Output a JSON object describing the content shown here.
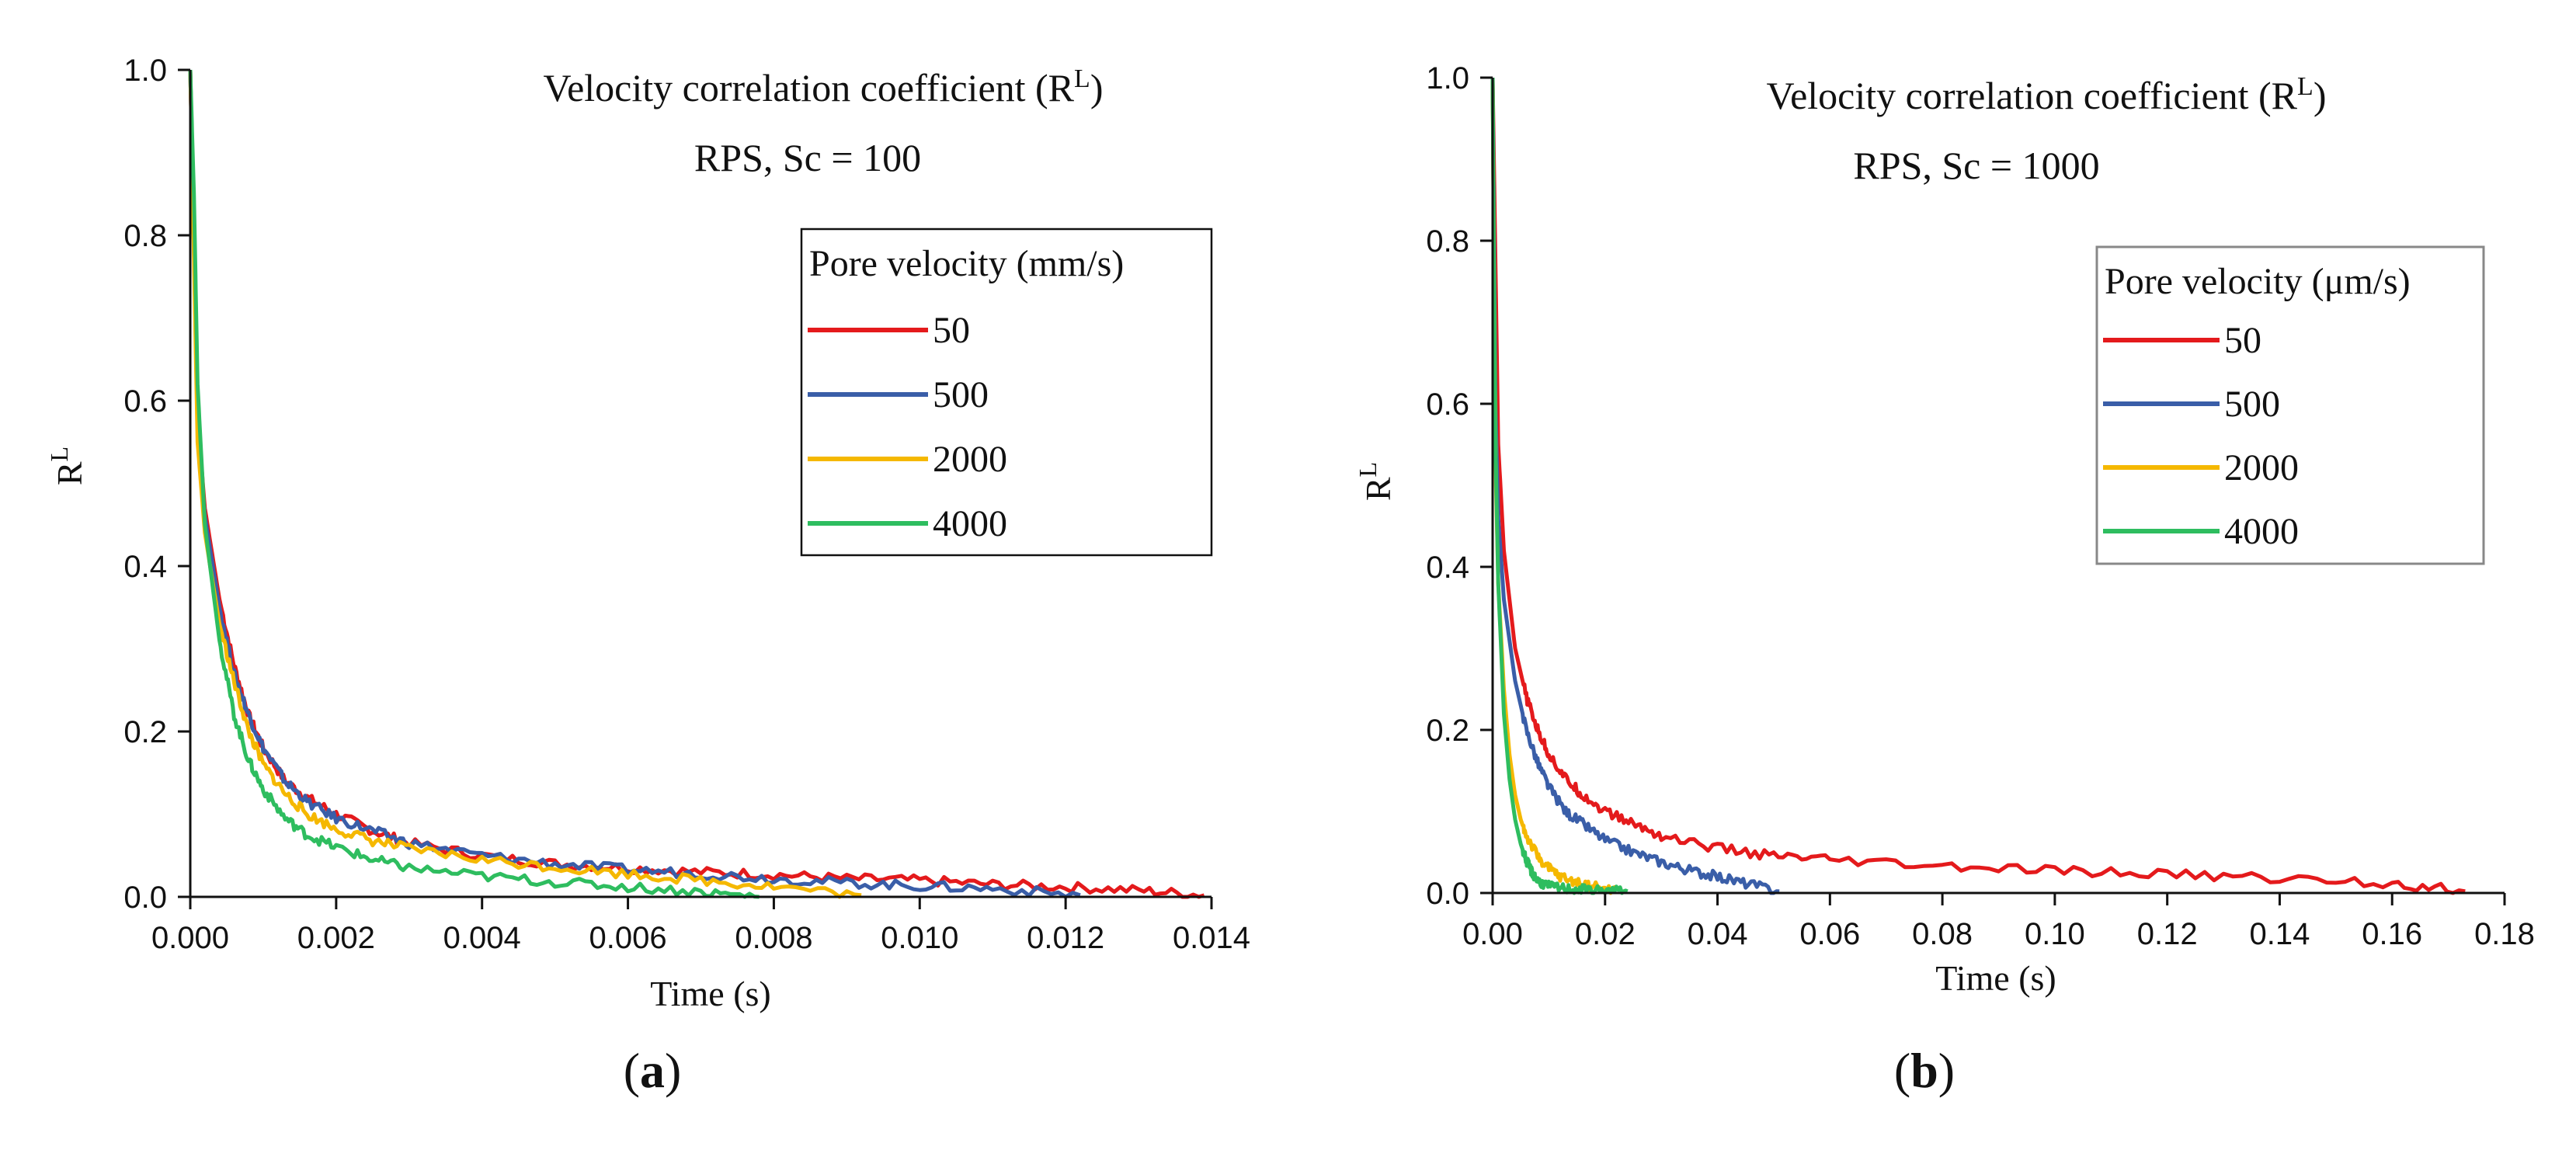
{
  "chart_data": [
    {
      "panel": "a",
      "type": "line",
      "title": "Velocity correlation coefficient (R^L)",
      "title_main": "Velocity correlation coefficient (R",
      "title_sup": "L",
      "title_close": ")",
      "subtitle": "RPS, Sc = 100",
      "xlabel": "Time (s)",
      "ylabel": "R^L",
      "ylabel_main": "R",
      "ylabel_sup": "L",
      "xlim": [
        0,
        0.014
      ],
      "ylim": [
        0,
        1.0
      ],
      "xticks": [
        "0.000",
        "0.002",
        "0.004",
        "0.006",
        "0.008",
        "0.010",
        "0.012",
        "0.014"
      ],
      "yticks": [
        "0.0",
        "0.2",
        "0.4",
        "0.6",
        "0.8",
        "1.0"
      ],
      "legend_title": "Pore velocity (mm/s)",
      "legend_position": "top-right",
      "panel_label": "a",
      "series": [
        {
          "name": "50",
          "color": "#e41a1c",
          "x_end": 0.0139,
          "x": [
            0,
            0.0001,
            0.0002,
            0.0004,
            0.0006,
            0.0008,
            0.001,
            0.0013,
            0.0016,
            0.002,
            0.0025,
            0.003,
            0.004,
            0.005,
            0.006,
            0.007,
            0.008,
            0.009,
            0.01,
            0.011,
            0.012,
            0.013,
            0.0139
          ],
          "y": [
            1.0,
            0.58,
            0.47,
            0.36,
            0.28,
            0.22,
            0.18,
            0.14,
            0.12,
            0.1,
            0.08,
            0.065,
            0.05,
            0.04,
            0.035,
            0.03,
            0.027,
            0.022,
            0.02,
            0.015,
            0.012,
            0.008,
            0.002
          ]
        },
        {
          "name": "500",
          "color": "#3a5ea8",
          "x_end": 0.0122,
          "x": [
            0,
            0.0001,
            0.0002,
            0.0004,
            0.0006,
            0.0008,
            0.001,
            0.0013,
            0.0016,
            0.002,
            0.0025,
            0.003,
            0.004,
            0.005,
            0.006,
            0.007,
            0.008,
            0.009,
            0.01,
            0.011,
            0.0122
          ],
          "y": [
            1.0,
            0.57,
            0.46,
            0.35,
            0.27,
            0.22,
            0.18,
            0.14,
            0.115,
            0.095,
            0.08,
            0.065,
            0.05,
            0.04,
            0.033,
            0.028,
            0.022,
            0.017,
            0.013,
            0.01,
            0.002
          ]
        },
        {
          "name": "2000",
          "color": "#f5b800",
          "x_end": 0.0092,
          "x": [
            0,
            0.0001,
            0.0002,
            0.0004,
            0.0006,
            0.0008,
            0.001,
            0.0013,
            0.0016,
            0.002,
            0.0025,
            0.003,
            0.004,
            0.005,
            0.006,
            0.007,
            0.008,
            0.0092
          ],
          "y": [
            1.0,
            0.55,
            0.44,
            0.33,
            0.26,
            0.2,
            0.16,
            0.125,
            0.1,
            0.082,
            0.068,
            0.058,
            0.045,
            0.036,
            0.028,
            0.02,
            0.013,
            0.002
          ]
        },
        {
          "name": "4000",
          "color": "#2ebd5f",
          "x_end": 0.0078,
          "x": [
            0,
            5e-05,
            0.0001,
            0.0002,
            0.0004,
            0.0006,
            0.0008,
            0.001,
            0.0013,
            0.0016,
            0.002,
            0.0025,
            0.003,
            0.004,
            0.005,
            0.006,
            0.007,
            0.0078
          ],
          "y": [
            1.0,
            0.85,
            0.62,
            0.45,
            0.31,
            0.22,
            0.165,
            0.13,
            0.095,
            0.075,
            0.06,
            0.045,
            0.035,
            0.025,
            0.018,
            0.012,
            0.006,
            0.0
          ]
        }
      ]
    },
    {
      "panel": "b",
      "type": "line",
      "title": "Velocity correlation coefficient (R^L)",
      "title_main": "Velocity correlation coefficient (R",
      "title_sup": "L",
      "title_close": ")",
      "subtitle": "RPS, Sc = 1000",
      "xlabel": "Time (s)",
      "ylabel": "R^L",
      "ylabel_main": "R",
      "ylabel_sup": "L",
      "xlim": [
        0,
        0.18
      ],
      "ylim": [
        0,
        1.0
      ],
      "xticks": [
        "0.00",
        "0.02",
        "0.04",
        "0.06",
        "0.08",
        "0.10",
        "0.12",
        "0.14",
        "0.16",
        "0.18"
      ],
      "yticks": [
        "0.0",
        "0.2",
        "0.4",
        "0.6",
        "0.8",
        "1.0"
      ],
      "legend_title": "Pore velocity (μm/s)",
      "legend_position": "top-right",
      "panel_label": "b",
      "series": [
        {
          "name": "50",
          "color": "#e41a1c",
          "x_end": 0.173,
          "x": [
            0,
            0.001,
            0.002,
            0.004,
            0.006,
            0.008,
            0.01,
            0.013,
            0.016,
            0.02,
            0.025,
            0.03,
            0.04,
            0.05,
            0.06,
            0.08,
            0.1,
            0.12,
            0.14,
            0.16,
            0.173
          ],
          "y": [
            1.0,
            0.55,
            0.42,
            0.3,
            0.24,
            0.2,
            0.17,
            0.14,
            0.12,
            0.1,
            0.085,
            0.07,
            0.055,
            0.045,
            0.04,
            0.032,
            0.027,
            0.023,
            0.018,
            0.012,
            0.002
          ]
        },
        {
          "name": "500",
          "color": "#3a5ea8",
          "x_end": 0.051,
          "x": [
            0,
            0.0005,
            0.001,
            0.002,
            0.004,
            0.006,
            0.008,
            0.01,
            0.013,
            0.016,
            0.02,
            0.025,
            0.03,
            0.035,
            0.04,
            0.045,
            0.051
          ],
          "y": [
            1.0,
            0.6,
            0.46,
            0.36,
            0.26,
            0.2,
            0.16,
            0.13,
            0.1,
            0.085,
            0.065,
            0.05,
            0.038,
            0.028,
            0.02,
            0.012,
            0.002
          ]
        },
        {
          "name": "2000",
          "color": "#f5b800",
          "x_end": 0.022,
          "x": [
            0,
            0.0003,
            0.0006,
            0.001,
            0.002,
            0.003,
            0.004,
            0.005,
            0.006,
            0.008,
            0.01,
            0.012,
            0.015,
            0.018,
            0.022
          ],
          "y": [
            1.0,
            0.7,
            0.5,
            0.38,
            0.25,
            0.17,
            0.12,
            0.09,
            0.07,
            0.045,
            0.03,
            0.02,
            0.013,
            0.008,
            0.003
          ]
        },
        {
          "name": "4000",
          "color": "#2ebd5f",
          "x_end": 0.024,
          "x": [
            0,
            0.0002,
            0.0005,
            0.001,
            0.002,
            0.003,
            0.004,
            0.005,
            0.006,
            0.007,
            0.008,
            0.01,
            0.013,
            0.016,
            0.02,
            0.024
          ],
          "y": [
            1.0,
            0.8,
            0.55,
            0.38,
            0.22,
            0.14,
            0.09,
            0.06,
            0.04,
            0.025,
            0.015,
            0.008,
            0.005,
            0.004,
            0.003,
            0.002
          ]
        }
      ]
    }
  ]
}
